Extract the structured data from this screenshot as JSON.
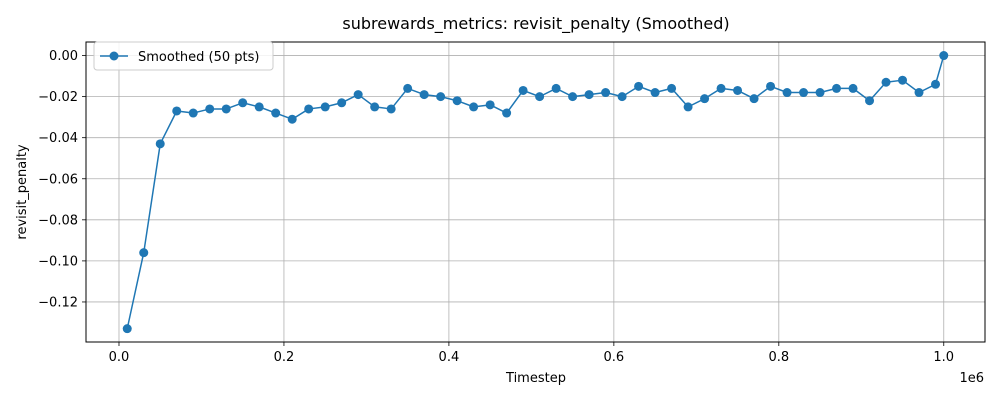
{
  "chart_data": {
    "type": "line",
    "title": "subrewards_metrics: revisit_penalty (Smoothed)",
    "xlabel": "Timestep",
    "ylabel": "revisit_penalty",
    "x_offset_label": "1e6",
    "xlim": [
      -40000,
      1050000
    ],
    "ylim": [
      -0.1395,
      0.0066
    ],
    "x_ticks": [
      0,
      200000,
      400000,
      600000,
      800000,
      1000000
    ],
    "x_tick_labels": [
      "0.0",
      "0.2",
      "0.4",
      "0.6",
      "0.8",
      "1.0"
    ],
    "y_ticks": [
      -0.12,
      -0.1,
      -0.08,
      -0.06,
      -0.04,
      -0.02,
      0.0
    ],
    "y_tick_labels": [
      "−0.12",
      "−0.10",
      "−0.08",
      "−0.06",
      "−0.04",
      "−0.02",
      "0.00"
    ],
    "grid": true,
    "legend_position": "top-left",
    "series": [
      {
        "name": "Smoothed (50 pts)",
        "color": "#1f77b4",
        "marker": "circle",
        "x": [
          10000,
          30000,
          50000,
          70000,
          90000,
          110000,
          130000,
          150000,
          170000,
          190000,
          210000,
          230000,
          250000,
          270000,
          290000,
          310000,
          330000,
          350000,
          370000,
          390000,
          410000,
          430000,
          450000,
          470000,
          490000,
          510000,
          530000,
          550000,
          570000,
          590000,
          610000,
          630000,
          650000,
          670000,
          690000,
          710000,
          730000,
          750000,
          770000,
          790000,
          810000,
          830000,
          850000,
          870000,
          890000,
          910000,
          930000,
          950000,
          970000,
          990000,
          1000000
        ],
        "y": [
          -0.133,
          -0.096,
          -0.043,
          -0.027,
          -0.028,
          -0.026,
          -0.026,
          -0.023,
          -0.025,
          -0.028,
          -0.031,
          -0.026,
          -0.025,
          -0.023,
          -0.019,
          -0.025,
          -0.026,
          -0.016,
          -0.019,
          -0.02,
          -0.022,
          -0.025,
          -0.024,
          -0.028,
          -0.017,
          -0.02,
          -0.016,
          -0.02,
          -0.019,
          -0.018,
          -0.02,
          -0.015,
          -0.018,
          -0.016,
          -0.025,
          -0.021,
          -0.016,
          -0.017,
          -0.021,
          -0.015,
          -0.018,
          -0.018,
          -0.018,
          -0.016,
          -0.016,
          -0.022,
          -0.013,
          -0.012,
          -0.018,
          -0.014,
          0.0
        ]
      }
    ]
  }
}
